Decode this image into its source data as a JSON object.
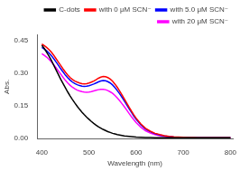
{
  "chart_data": {
    "type": "line",
    "xlabel": "Wavelength (nm)",
    "ylabel": "Abs.",
    "xlim": [
      390,
      805
    ],
    "ylim": [
      -0.005,
      0.48
    ],
    "xticks": [
      400,
      500,
      600,
      700,
      800
    ],
    "yticks": [
      {
        "value": 0.0,
        "label": "0.00"
      },
      0.15,
      {
        "value": 0.3,
        "label": "0.30"
      },
      0.45
    ],
    "grid": false,
    "legend": "upper right",
    "x": [
      400,
      405,
      410,
      415,
      420,
      425,
      430,
      435,
      440,
      445,
      450,
      455,
      460,
      465,
      470,
      475,
      480,
      485,
      490,
      495,
      500,
      505,
      510,
      515,
      520,
      525,
      530,
      535,
      540,
      545,
      550,
      555,
      560,
      565,
      570,
      575,
      580,
      585,
      590,
      595,
      600,
      610,
      620,
      630,
      640,
      650,
      660,
      670,
      680,
      690,
      700,
      710,
      720,
      730,
      740,
      750,
      760,
      770,
      780,
      790,
      800
    ],
    "series": [
      {
        "name": "C-dots",
        "color": "black",
        "values": [
          0.43,
          0.415,
          0.398,
          0.38,
          0.36,
          0.338,
          0.316,
          0.294,
          0.272,
          0.252,
          0.232,
          0.213,
          0.195,
          0.178,
          0.162,
          0.147,
          0.133,
          0.12,
          0.108,
          0.097,
          0.087,
          0.077,
          0.068,
          0.06,
          0.052,
          0.046,
          0.04,
          0.035,
          0.03,
          0.026,
          0.022,
          0.019,
          0.016,
          0.014,
          0.012,
          0.01,
          0.009,
          0.008,
          0.007,
          0.006,
          0.005,
          0.004,
          0.003,
          0.003,
          0.002,
          0.002,
          0.002,
          0.001,
          0.001,
          0.001,
          0.001,
          0.001,
          0.001,
          0.001,
          0.001,
          0.001,
          0.001,
          0.001,
          0.001,
          0.001,
          0.001
        ]
      },
      {
        "name": "with 0 μM SCN⁻",
        "color": "red",
        "values": [
          0.435,
          0.428,
          0.42,
          0.41,
          0.398,
          0.384,
          0.368,
          0.352,
          0.336,
          0.32,
          0.305,
          0.292,
          0.28,
          0.271,
          0.264,
          0.259,
          0.255,
          0.252,
          0.251,
          0.252,
          0.255,
          0.259,
          0.264,
          0.27,
          0.277,
          0.282,
          0.285,
          0.284,
          0.28,
          0.273,
          0.263,
          0.25,
          0.235,
          0.218,
          0.2,
          0.181,
          0.162,
          0.143,
          0.125,
          0.108,
          0.092,
          0.065,
          0.045,
          0.032,
          0.022,
          0.016,
          0.011,
          0.008,
          0.006,
          0.005,
          0.004,
          0.003,
          0.003,
          0.002,
          0.002,
          0.002,
          0.001,
          0.001,
          0.001,
          0.001,
          0.001
        ]
      },
      {
        "name": "with 5.0 μM SCN⁻",
        "color": "blue",
        "values": [
          0.42,
          0.413,
          0.404,
          0.394,
          0.382,
          0.368,
          0.353,
          0.337,
          0.321,
          0.306,
          0.291,
          0.279,
          0.268,
          0.259,
          0.252,
          0.247,
          0.243,
          0.24,
          0.239,
          0.24,
          0.242,
          0.246,
          0.25,
          0.255,
          0.26,
          0.264,
          0.266,
          0.265,
          0.261,
          0.255,
          0.246,
          0.234,
          0.22,
          0.205,
          0.189,
          0.172,
          0.154,
          0.136,
          0.119,
          0.102,
          0.087,
          0.061,
          0.042,
          0.029,
          0.02,
          0.014,
          0.01,
          0.007,
          0.005,
          0.004,
          0.003,
          0.003,
          0.002,
          0.002,
          0.002,
          0.001,
          0.001,
          0.001,
          0.001,
          0.001,
          0.001
        ]
      },
      {
        "name": "with 20 μM SCN⁻",
        "color": "magenta",
        "values": [
          0.39,
          0.383,
          0.375,
          0.365,
          0.353,
          0.34,
          0.326,
          0.311,
          0.296,
          0.281,
          0.267,
          0.255,
          0.244,
          0.235,
          0.228,
          0.222,
          0.218,
          0.215,
          0.213,
          0.212,
          0.213,
          0.215,
          0.218,
          0.221,
          0.224,
          0.226,
          0.226,
          0.224,
          0.22,
          0.214,
          0.207,
          0.197,
          0.186,
          0.173,
          0.159,
          0.145,
          0.13,
          0.114,
          0.099,
          0.085,
          0.072,
          0.05,
          0.034,
          0.023,
          0.016,
          0.011,
          0.008,
          0.006,
          0.004,
          0.003,
          0.003,
          0.002,
          0.002,
          0.001,
          0.001,
          0.001,
          0.001,
          0.001,
          0.001,
          0.001,
          0.001
        ]
      }
    ]
  }
}
